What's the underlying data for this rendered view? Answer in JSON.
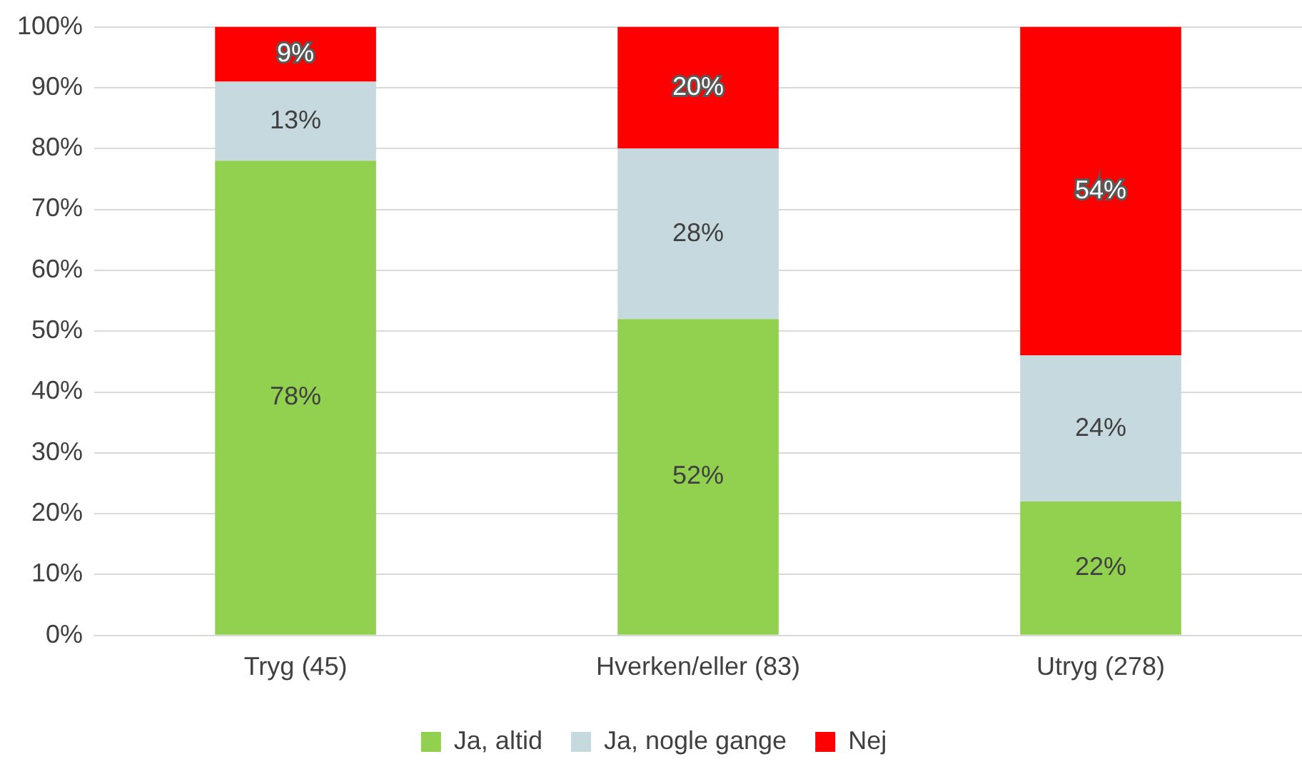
{
  "chart_data": {
    "type": "bar",
    "stacked": true,
    "categories": [
      "Tryg (45)",
      "Hverken/eller (83)",
      "Utryg (278)"
    ],
    "series": [
      {
        "name": "Ja, altid",
        "color": "#92d050",
        "values": [
          78,
          52,
          22
        ],
        "value_labels": [
          "78%",
          "52%",
          "22%"
        ]
      },
      {
        "name": "Ja, nogle gange",
        "color": "#c6d9df",
        "values": [
          13,
          28,
          24
        ],
        "value_labels": [
          "13%",
          "28%",
          "24%"
        ]
      },
      {
        "name": "Nej",
        "color": "#ff0000",
        "values": [
          9,
          20,
          54
        ],
        "value_labels": [
          "9%",
          "20%",
          "54%"
        ]
      }
    ],
    "ylim": [
      0,
      100
    ],
    "yticks": [
      {
        "value": 0,
        "label": "0%"
      },
      {
        "value": 10,
        "label": "10%"
      },
      {
        "value": 20,
        "label": "20%"
      },
      {
        "value": 30,
        "label": "30%"
      },
      {
        "value": 40,
        "label": "40%"
      },
      {
        "value": 50,
        "label": "50%"
      },
      {
        "value": 60,
        "label": "60%"
      },
      {
        "value": 70,
        "label": "70%"
      },
      {
        "value": 80,
        "label": "80%"
      },
      {
        "value": 90,
        "label": "90%"
      },
      {
        "value": 100,
        "label": "100%"
      }
    ],
    "grid": "y",
    "legend": "bottom"
  }
}
